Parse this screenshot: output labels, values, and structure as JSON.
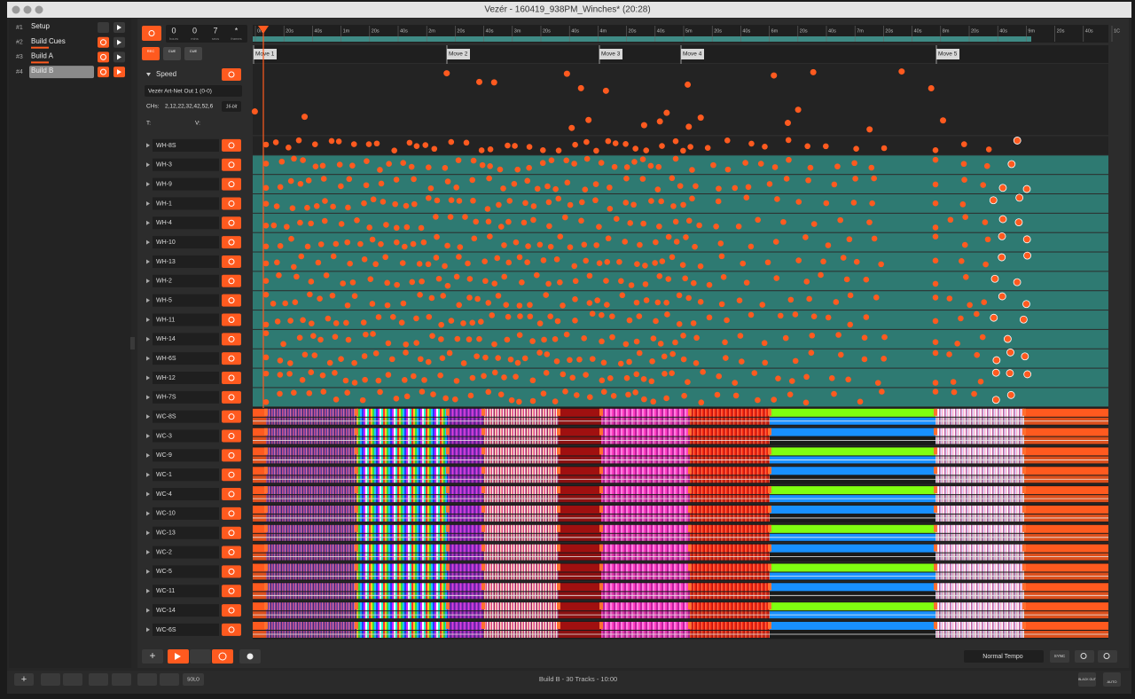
{
  "window": {
    "title": "Vezér - 160419_938PM_Winches* (20:28)"
  },
  "compositions": [
    {
      "number": "#1",
      "name": "Setup"
    },
    {
      "number": "#2",
      "name": "Build Cues"
    },
    {
      "number": "#3",
      "name": "Build A"
    },
    {
      "number": "#4",
      "name": "Build B"
    }
  ],
  "timecode": {
    "values": [
      "0",
      "0",
      "7",
      "*"
    ],
    "units": [
      "hours",
      "mins",
      "secs",
      "frames"
    ]
  },
  "transport": {
    "rec": "REC",
    "cue_prev": "CUE",
    "cue_next": "CUE"
  },
  "ruler": [
    "0m",
    "20s",
    "40s",
    "1m",
    "20s",
    "40s",
    "2m",
    "20s",
    "40s",
    "3m",
    "20s",
    "40s",
    "4m",
    "20s",
    "40s",
    "5m",
    "20s",
    "40s",
    "6m",
    "20s",
    "40s",
    "7m",
    "20s",
    "40s",
    "8m",
    "20s",
    "40s",
    "9m",
    "20s",
    "40s",
    "1C"
  ],
  "cues": [
    "Move 1",
    "Move 2",
    "Move 3",
    "Move 4",
    "Move 5"
  ],
  "speed_track": {
    "name": "Speed",
    "output": "Vezér Art-Net Out 1 (0-0)",
    "channels_label": "CHs:",
    "channels": "2,12,22,32,42,52,6",
    "resolution": "16-bit",
    "t_label": "T:",
    "v_label": "V:"
  },
  "tracks": [
    "WH-8S",
    "WH-3",
    "WH-9",
    "WH-1",
    "WH-4",
    "WH-10",
    "WH-13",
    "WH-2",
    "WH-5",
    "WH-11",
    "WH-14",
    "WH-6S",
    "WH-12",
    "WH-7S",
    "WC-8S",
    "WC-3",
    "WC-9",
    "WC-1",
    "WC-4",
    "WC-10",
    "WC-13",
    "WC-2",
    "WC-5",
    "WC-11",
    "WC-14",
    "WC-6S"
  ],
  "footer": {
    "tempo": "Normal Tempo",
    "sync": "SYNC",
    "status": "Build B - 30 Tracks - 10:00",
    "solo": "SOLO",
    "blackout": "BLACK OUT",
    "auto": "AUTO"
  }
}
